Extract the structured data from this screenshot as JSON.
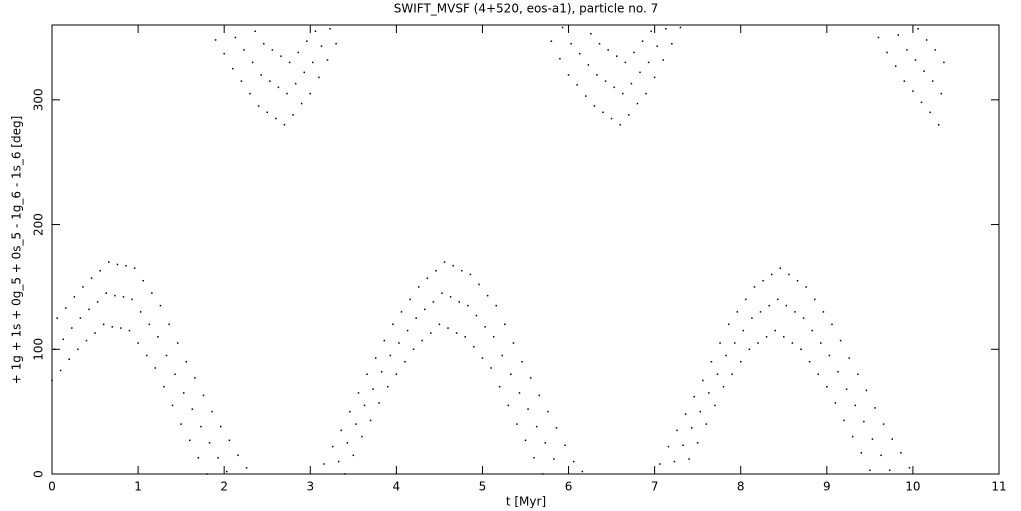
{
  "chart_data": {
    "type": "scatter",
    "title": "SWIFT_MVSF (4+520, eos-a1), particle no. 7",
    "xlabel": "t [Myr]",
    "ylabel": "+ 1g + 1s + 0g_5 + 0s_5 - 1g_6 - 1s_6 [deg]",
    "xlim": [
      0,
      11
    ],
    "ylim": [
      0,
      360
    ],
    "xticks": [
      0,
      1,
      2,
      3,
      4,
      5,
      6,
      7,
      8,
      9,
      10,
      11
    ],
    "yticks": [
      0,
      100,
      200,
      300
    ],
    "color": "#000000",
    "x": [
      0,
      0.03,
      0.06,
      0.1,
      0.13,
      0.16,
      0.2,
      0.23,
      0.26,
      0.3,
      0.33,
      0.36,
      0.4,
      0.43,
      0.46,
      0.5,
      0.53,
      0.56,
      0.6,
      0.63,
      0.66,
      0.7,
      0.73,
      0.76,
      0.8,
      0.83,
      0.86,
      0.9,
      0.93,
      0.96,
      1,
      1.03,
      1.06,
      1.1,
      1.13,
      1.16,
      1.2,
      1.23,
      1.26,
      1.3,
      1.33,
      1.36,
      1.4,
      1.43,
      1.46,
      1.5,
      1.53,
      1.56,
      1.6,
      1.63,
      1.66,
      1.7,
      1.73,
      1.76,
      1.8,
      1.83,
      1.86,
      1.9,
      1.93,
      1.96,
      2,
      2.03,
      2.06,
      2.1,
      2.13,
      2.16,
      2.2,
      2.23,
      2.26,
      2.3,
      2.33,
      2.36,
      2.4,
      2.43,
      2.46,
      2.5,
      2.53,
      2.56,
      2.6,
      2.63,
      2.66,
      2.7,
      2.73,
      2.76,
      2.8,
      2.83,
      2.86,
      2.9,
      2.93,
      2.96,
      3,
      3.03,
      3.06,
      3.1,
      3.13,
      3.16,
      3.2,
      3.23,
      3.26,
      3.3,
      3.33,
      3.36,
      3.4,
      3.43,
      3.46,
      3.5,
      3.53,
      3.56,
      3.6,
      3.63,
      3.66,
      3.7,
      3.73,
      3.76,
      3.8,
      3.83,
      3.86,
      3.9,
      3.93,
      3.96,
      4,
      4.03,
      4.06,
      4.1,
      4.13,
      4.16,
      4.2,
      4.23,
      4.26,
      4.3,
      4.33,
      4.36,
      4.4,
      4.43,
      4.46,
      4.5,
      4.53,
      4.56,
      4.6,
      4.63,
      4.66,
      4.7,
      4.73,
      4.76,
      4.8,
      4.83,
      4.86,
      4.9,
      4.93,
      4.96,
      5,
      5.03,
      5.06,
      5.1,
      5.13,
      5.16,
      5.2,
      5.23,
      5.26,
      5.3,
      5.33,
      5.36,
      5.4,
      5.43,
      5.46,
      5.5,
      5.53,
      5.56,
      5.6,
      5.63,
      5.66,
      5.7,
      5.73,
      5.76,
      5.8,
      5.83,
      5.86,
      5.9,
      5.93,
      5.96,
      6,
      6.03,
      6.06,
      6.1,
      6.13,
      6.16,
      6.2,
      6.23,
      6.26,
      6.3,
      6.33,
      6.36,
      6.4,
      6.43,
      6.46,
      6.5,
      6.53,
      6.56,
      6.6,
      6.63,
      6.66,
      6.7,
      6.73,
      6.76,
      6.8,
      6.83,
      6.86,
      6.9,
      6.93,
      6.96,
      7,
      7.03,
      7.06,
      7.1,
      7.13,
      7.16,
      7.2,
      7.23,
      7.26,
      7.3,
      7.33,
      7.36,
      7.4,
      7.43,
      7.46,
      7.5,
      7.53,
      7.56,
      7.6,
      7.63,
      7.66,
      7.7,
      7.73,
      7.76,
      7.8,
      7.83,
      7.86,
      7.9,
      7.93,
      7.96,
      8,
      8.03,
      8.06,
      8.1,
      8.13,
      8.16,
      8.2,
      8.23,
      8.26,
      8.3,
      8.33,
      8.36,
      8.4,
      8.43,
      8.46,
      8.5,
      8.53,
      8.56,
      8.6,
      8.63,
      8.66,
      8.7,
      8.73,
      8.76,
      8.8,
      8.83,
      8.86,
      8.9,
      8.93,
      8.96,
      9,
      9.03,
      9.06,
      9.1,
      9.13,
      9.16,
      9.2,
      9.23,
      9.26,
      9.3,
      9.33,
      9.36,
      9.4,
      9.43,
      9.46,
      9.5,
      9.53,
      9.56,
      9.6,
      9.63,
      9.66,
      9.7,
      9.73,
      9.76,
      9.8,
      9.83,
      9.86,
      9.9,
      9.93,
      9.96,
      10,
      10.03,
      10.06,
      10.1,
      10.13,
      10.16,
      10.2,
      10.23,
      10.26,
      10.3,
      10.33,
      10.36
    ],
    "values": [
      75,
      100,
      125,
      83,
      108,
      133,
      92,
      117,
      142,
      100,
      125,
      150,
      107,
      132,
      157,
      113,
      138,
      163,
      120,
      145,
      170,
      118,
      143,
      168,
      117,
      142,
      167,
      115,
      140,
      165,
      105,
      130,
      155,
      95,
      120,
      145,
      85,
      110,
      135,
      70,
      95,
      120,
      55,
      80,
      105,
      40,
      65,
      90,
      27,
      52,
      77,
      13,
      38,
      63,
      0,
      25,
      50,
      348,
      13,
      38,
      337,
      2,
      27,
      325,
      350,
      15,
      315,
      340,
      5,
      305,
      330,
      355,
      295,
      320,
      345,
      290,
      315,
      340,
      285,
      310,
      335,
      280,
      305,
      330,
      288,
      313,
      338,
      297,
      322,
      347,
      305,
      330,
      355,
      318,
      343,
      8,
      332,
      357,
      22,
      345,
      10,
      35,
      0,
      25,
      50,
      15,
      40,
      65,
      30,
      55,
      80,
      43,
      68,
      93,
      57,
      82,
      107,
      70,
      95,
      120,
      80,
      105,
      130,
      90,
      115,
      140,
      100,
      125,
      150,
      107,
      132,
      157,
      113,
      138,
      163,
      120,
      145,
      170,
      117,
      142,
      167,
      113,
      138,
      163,
      110,
      135,
      160,
      102,
      127,
      152,
      93,
      118,
      143,
      85,
      110,
      135,
      70,
      95,
      120,
      55,
      80,
      105,
      40,
      65,
      90,
      27,
      52,
      77,
      13,
      38,
      63,
      0,
      25,
      50,
      347,
      12,
      37,
      333,
      358,
      23,
      320,
      345,
      10,
      312,
      337,
      2,
      303,
      328,
      353,
      295,
      320,
      345,
      290,
      315,
      340,
      285,
      310,
      335,
      280,
      305,
      330,
      288,
      313,
      338,
      297,
      322,
      347,
      305,
      330,
      355,
      318,
      343,
      8,
      332,
      357,
      22,
      345,
      10,
      35,
      358,
      23,
      48,
      12,
      37,
      62,
      25,
      50,
      75,
      40,
      65,
      90,
      55,
      80,
      105,
      70,
      95,
      120,
      80,
      105,
      130,
      90,
      115,
      140,
      100,
      125,
      150,
      105,
      130,
      155,
      110,
      135,
      160,
      115,
      140,
      165,
      110,
      135,
      160,
      105,
      130,
      155,
      100,
      125,
      150,
      90,
      115,
      140,
      80,
      105,
      130,
      70,
      95,
      120,
      57,
      82,
      107,
      43,
      68,
      93,
      30,
      55,
      80,
      17,
      42,
      67,
      3,
      28,
      53,
      350,
      15,
      40,
      338,
      3,
      28,
      327,
      352,
      17,
      315,
      340,
      5,
      307,
      332,
      357,
      298,
      323,
      348,
      290,
      315,
      340,
      280,
      305,
      330
    ]
  }
}
